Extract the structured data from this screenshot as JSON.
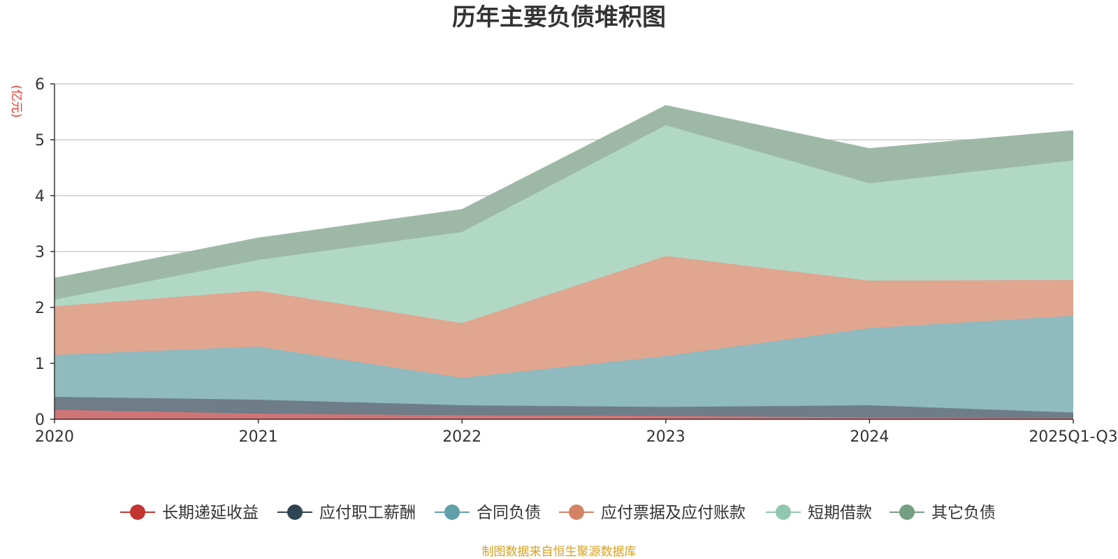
{
  "chart_data": {
    "type": "area",
    "stacked": true,
    "title": "历年主要负债堆积图",
    "unit_label": "(亿元)",
    "x": [
      "2020",
      "2021",
      "2022",
      "2023",
      "2024",
      "2025Q1-Q3"
    ],
    "ylim": [
      0,
      6
    ],
    "yticks": [
      0,
      1,
      2,
      3,
      4,
      5,
      6
    ],
    "grid": true,
    "legend_position": "bottom",
    "series": [
      {
        "name": "长期递延收益",
        "color": "#c23531",
        "fill": "#d17476",
        "values": [
          0.17,
          0.1,
          0.07,
          0.06,
          0.03,
          0.02
        ]
      },
      {
        "name": "应付职工薪酬",
        "color": "#2f4554",
        "fill": "#6e7d87",
        "values": [
          0.23,
          0.25,
          0.18,
          0.16,
          0.22,
          0.1
        ]
      },
      {
        "name": "合同负债",
        "color": "#61a0a8",
        "fill": "#8fbac0",
        "values": [
          0.75,
          0.95,
          0.49,
          0.91,
          1.38,
          1.73
        ]
      },
      {
        "name": "应付票据及应付账款",
        "color": "#d48265",
        "fill": "#e0a690",
        "values": [
          0.87,
          1.0,
          0.98,
          1.79,
          0.85,
          0.64
        ]
      },
      {
        "name": "短期借款",
        "color": "#91c7ae",
        "fill": "#b0d8c5",
        "values": [
          0.12,
          0.55,
          1.63,
          2.34,
          1.74,
          2.14
        ]
      },
      {
        "name": "其它负债",
        "color": "#749f83",
        "fill": "#9eb8a7",
        "values": [
          0.38,
          0.39,
          0.4,
          0.35,
          0.62,
          0.53
        ]
      }
    ],
    "source_note": "制图数据来自恒生聚源数据库"
  }
}
